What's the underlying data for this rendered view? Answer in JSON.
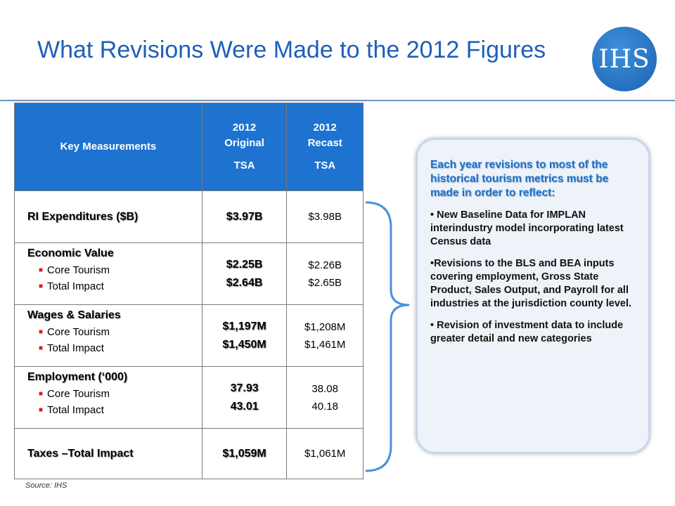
{
  "title": "What Revisions Were Made to the 2012 Figures",
  "logo_text": "IHS",
  "table": {
    "headers": {
      "col0": "Key Measurements",
      "col1_line1": "2012",
      "col1_line2": "Original",
      "col1_line3": "TSA",
      "col2_line1": "2012",
      "col2_line2": "Recast",
      "col2_line3": "TSA"
    },
    "rows": [
      {
        "label": "RI Expenditures ($B)",
        "original": "$3.97B",
        "recast": "$3.98B"
      },
      {
        "label": "Economic Value",
        "sub1": "Core Tourism",
        "sub2": "Total Impact",
        "original1": "$2.25B",
        "original2": "$2.64B",
        "recast1": "$2.26B",
        "recast2": "$2.65B"
      },
      {
        "label": "Wages & Salaries",
        "sub1": "Core Tourism",
        "sub2": "Total Impact",
        "original1": "$1,197M",
        "original2": "$1,450M",
        "recast1": "$1,208M",
        "recast2": "$1,461M"
      },
      {
        "label": "Employment (‘000)",
        "sub1": "Core Tourism",
        "sub2": "Total Impact",
        "original1": "37.93",
        "original2": "43.01",
        "recast1": "38.08",
        "recast2": "40.18"
      },
      {
        "label": "Taxes –Total Impact",
        "original": "$1,059M",
        "recast": "$1,061M"
      }
    ]
  },
  "source": "Source: IHS",
  "callout": {
    "heading": "Each year revisions to most of the historical tourism metrics must be made in order to reflect:",
    "items": [
      "• New Baseline Data for IMPLAN interindustry model incorporating latest Census data",
      "•Revisions to the BLS and BEA inputs covering employment, Gross State Product, Sales Output, and Payroll for all industries at the jurisdiction county level.",
      "• Revision of investment data to include greater detail and new categories"
    ]
  },
  "colors": {
    "title": "#1f5fb8",
    "header_bg": "#1d73cf",
    "bullet": "#d81b1b",
    "brace": "#4a90d9"
  }
}
